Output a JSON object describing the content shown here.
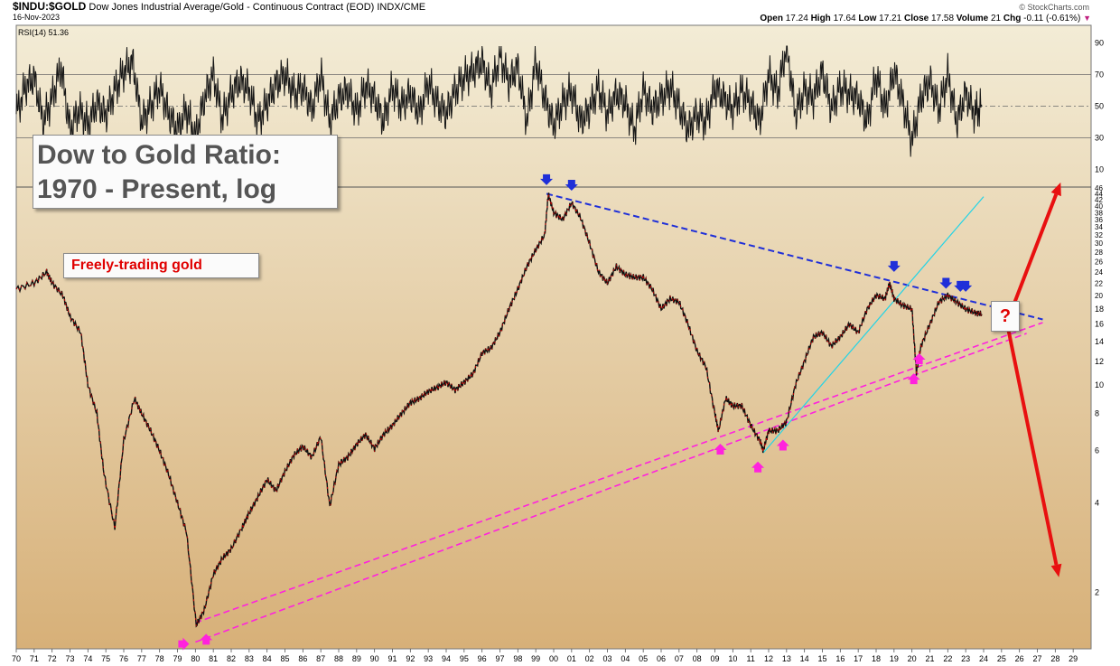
{
  "header": {
    "symbol": "$INDU:$GOLD",
    "description": "Dow Jones Industrial Average/Gold - Continuous Contract (EOD)",
    "exchange": "INDX/CME",
    "date": "16-Nov-2023",
    "credit": "© StockCharts.com",
    "ohlc": {
      "open_label": "Open",
      "open": "17.24",
      "high_label": "High",
      "high": "17.64",
      "low_label": "Low",
      "low": "17.21",
      "close_label": "Close",
      "close": "17.58",
      "volume_label": "Volume",
      "volume": "21",
      "chg_label": "Chg",
      "chg": "-0.11 (-0.61%)"
    }
  },
  "annotations": {
    "title_line1": "Dow to Gold Ratio:",
    "title_line2": "1970 - Present, log",
    "freely_trading": "Freely-trading gold",
    "question": "?"
  },
  "colors": {
    "background_top": "#f3ecd6",
    "background_bottom": "#d7b078",
    "price": "#101010",
    "price_down": "#e00000",
    "downtrend": "#1f2fd8",
    "support": "#ff22dd",
    "cyan_line": "#22d4e6",
    "scenario_arrows": "#e81010"
  },
  "chart_data": [
    {
      "type": "line",
      "panel": "indicator",
      "legend": "RSI(14) 51.36",
      "y_ticks": [
        10,
        30,
        50,
        70,
        90
      ],
      "ylim": [
        0,
        100
      ],
      "reference_lines": [
        30,
        50,
        70
      ],
      "x": [
        1970.0,
        1970.5,
        1971.0,
        1971.5,
        1972.0,
        1972.5,
        1973.0,
        1973.5,
        1974.0,
        1974.5,
        1975.0,
        1975.5,
        1976.0,
        1976.5,
        1977.0,
        1977.5,
        1978.0,
        1978.5,
        1979.0,
        1979.5,
        1980.0,
        1980.5,
        1981.0,
        1981.5,
        1982.0,
        1982.5,
        1983.0,
        1983.5,
        1984.0,
        1984.5,
        1985.0,
        1985.5,
        1986.0,
        1986.5,
        1987.0,
        1987.5,
        1988.0,
        1988.5,
        1989.0,
        1989.5,
        1990.0,
        1990.5,
        1991.0,
        1991.5,
        1992.0,
        1992.5,
        1993.0,
        1993.5,
        1994.0,
        1994.5,
        1995.0,
        1995.5,
        1996.0,
        1996.5,
        1997.0,
        1997.5,
        1998.0,
        1998.5,
        1999.0,
        1999.5,
        2000.0,
        2000.5,
        2001.0,
        2001.5,
        2002.0,
        2002.5,
        2003.0,
        2003.5,
        2004.0,
        2004.5,
        2005.0,
        2005.5,
        2006.0,
        2006.5,
        2007.0,
        2007.5,
        2008.0,
        2008.5,
        2009.0,
        2009.5,
        2010.0,
        2010.5,
        2011.0,
        2011.5,
        2012.0,
        2012.5,
        2013.0,
        2013.5,
        2014.0,
        2014.5,
        2015.0,
        2015.5,
        2016.0,
        2016.5,
        2017.0,
        2017.5,
        2018.0,
        2018.5,
        2019.0,
        2019.5,
        2020.0,
        2020.5,
        2021.0,
        2021.5,
        2022.0,
        2022.5,
        2023.0,
        2023.5,
        2023.9
      ],
      "values": [
        45,
        62,
        68,
        40,
        55,
        75,
        35,
        48,
        38,
        52,
        44,
        60,
        72,
        78,
        40,
        50,
        62,
        45,
        35,
        48,
        30,
        55,
        70,
        42,
        58,
        66,
        60,
        40,
        52,
        64,
        70,
        58,
        62,
        48,
        70,
        40,
        55,
        60,
        46,
        63,
        55,
        40,
        62,
        50,
        58,
        45,
        65,
        52,
        45,
        60,
        68,
        72,
        78,
        60,
        82,
        65,
        75,
        40,
        78,
        55,
        38,
        52,
        60,
        40,
        48,
        62,
        45,
        58,
        52,
        35,
        60,
        48,
        55,
        62,
        50,
        35,
        45,
        40,
        62,
        55,
        48,
        60,
        52,
        40,
        70,
        58,
        88,
        45,
        60,
        55,
        72,
        48,
        62,
        58,
        55,
        40,
        70,
        48,
        72,
        52,
        28,
        55,
        66,
        48,
        70,
        40,
        58,
        45,
        51
      ]
    },
    {
      "type": "line",
      "panel": "price",
      "title": "Dow to Gold Ratio: 1970 - Present, log",
      "yscale": "log",
      "y_ticks": [
        2,
        4,
        6,
        8,
        10,
        12,
        14,
        16,
        18,
        20,
        22,
        24,
        26,
        28,
        30,
        32,
        34,
        36,
        38,
        40,
        42,
        44,
        46
      ],
      "ylim": [
        1.3,
        46
      ],
      "x_ticks": [
        "70",
        "71",
        "72",
        "73",
        "74",
        "75",
        "76",
        "77",
        "78",
        "79",
        "80",
        "81",
        "82",
        "83",
        "84",
        "85",
        "86",
        "87",
        "88",
        "89",
        "90",
        "91",
        "92",
        "93",
        "94",
        "95",
        "96",
        "97",
        "98",
        "99",
        "00",
        "01",
        "02",
        "03",
        "04",
        "05",
        "06",
        "07",
        "08",
        "09",
        "10",
        "11",
        "12",
        "13",
        "14",
        "15",
        "16",
        "17",
        "18",
        "19",
        "20",
        "21",
        "22",
        "23",
        "24",
        "25",
        "26",
        "27",
        "28",
        "29"
      ],
      "xlim": [
        1970,
        2030
      ],
      "x": [
        1970.0,
        1971.0,
        1971.7,
        1972.0,
        1972.6,
        1973.0,
        1973.6,
        1974.0,
        1974.5,
        1974.9,
        1975.5,
        1976.0,
        1976.6,
        1977.0,
        1977.5,
        1978.0,
        1978.5,
        1979.0,
        1979.5,
        1980.05,
        1980.5,
        1981.0,
        1981.5,
        1982.0,
        1982.6,
        1983.0,
        1983.5,
        1984.0,
        1984.5,
        1985.0,
        1985.5,
        1986.0,
        1986.5,
        1987.0,
        1987.5,
        1988.0,
        1988.5,
        1989.0,
        1989.5,
        1990.0,
        1990.5,
        1991.0,
        1991.5,
        1992.0,
        1992.5,
        1993.0,
        1993.5,
        1994.0,
        1994.5,
        1995.0,
        1995.5,
        1996.0,
        1996.5,
        1997.0,
        1997.5,
        1998.0,
        1998.5,
        1999.0,
        1999.5,
        1999.7,
        2000.0,
        2000.5,
        2001.0,
        2001.5,
        2002.0,
        2002.5,
        2003.0,
        2003.5,
        2004.0,
        2004.5,
        2005.0,
        2005.5,
        2006.0,
        2006.5,
        2007.0,
        2007.5,
        2008.0,
        2008.5,
        2009.0,
        2009.2,
        2009.6,
        2010.0,
        2010.5,
        2011.0,
        2011.5,
        2011.7,
        2012.0,
        2012.5,
        2013.0,
        2013.5,
        2014.0,
        2014.5,
        2015.0,
        2015.5,
        2016.0,
        2016.5,
        2017.0,
        2017.5,
        2018.0,
        2018.5,
        2018.75,
        2019.0,
        2019.5,
        2020.0,
        2020.25,
        2020.5,
        2021.0,
        2021.5,
        2022.0,
        2022.5,
        2023.0,
        2023.5,
        2023.9
      ],
      "values": [
        21,
        22,
        24,
        22,
        20,
        17,
        15,
        10,
        8,
        5,
        3.3,
        6.5,
        9,
        8,
        7,
        6,
        5,
        4,
        3.2,
        1.55,
        1.75,
        2.3,
        2.6,
        2.8,
        3.3,
        3.7,
        4.2,
        4.8,
        4.4,
        5.1,
        5.8,
        6.2,
        5.7,
        6.7,
        3.9,
        5.4,
        5.7,
        6.3,
        6.8,
        6.1,
        6.8,
        7.3,
        8.0,
        8.7,
        9.0,
        9.5,
        9.8,
        10.2,
        9.6,
        10.2,
        10.9,
        12.8,
        13.3,
        15.0,
        18.0,
        21.0,
        25.0,
        28.5,
        32.0,
        44.0,
        38.0,
        36.0,
        41.0,
        36.5,
        30.0,
        24.0,
        22.0,
        25.0,
        23.5,
        23.0,
        23.0,
        21.0,
        18.0,
        19.5,
        19.0,
        16.0,
        13.0,
        11.5,
        8.0,
        7.0,
        9.0,
        8.5,
        8.5,
        7.3,
        6.5,
        6.0,
        7.0,
        7.0,
        7.5,
        10.0,
        12.0,
        14.5,
        15.0,
        13.5,
        14.5,
        16.0,
        15.0,
        18.0,
        20.0,
        19.5,
        22.0,
        19.5,
        18.5,
        18.0,
        11.0,
        13.5,
        16.0,
        19.0,
        20.0,
        19.0,
        18.0,
        17.5,
        17.3
      ],
      "downtrend_line": [
        [
          1999.6,
          44
        ],
        [
          2027.3,
          16.6
        ]
      ],
      "support_line_upper": [
        [
          1980.0,
          1.58
        ],
        [
          2027.3,
          16.2
        ]
      ],
      "support_line_lower": [
        [
          1980.0,
          1.36
        ],
        [
          2026.4,
          14.9
        ]
      ],
      "cyan_trend_line": [
        [
          2011.7,
          5.9
        ],
        [
          2024.0,
          43
        ]
      ],
      "scenario_up_target": [
        2028.3,
        48
      ],
      "scenario_down_target": [
        2028.2,
        2.25
      ],
      "scenario_origin": [
        2025.3,
        16.2
      ],
      "marker_down_arrows": [
        [
          1999.6,
          48
        ],
        [
          2001.0,
          46
        ],
        [
          2019.0,
          24.5
        ],
        [
          2021.9,
          21.5
        ],
        [
          2022.7,
          21
        ],
        [
          2023.0,
          21
        ]
      ],
      "marker_up_arrows": [
        [
          1980.6,
          1.42
        ],
        [
          2009.3,
          6.2
        ],
        [
          2011.4,
          5.4
        ],
        [
          2012.8,
          6.4
        ],
        [
          2020.1,
          10.7
        ],
        [
          2020.4,
          12.5
        ]
      ],
      "marker_right_arrows": [
        [
          1979.5,
          1.34
        ]
      ]
    }
  ]
}
